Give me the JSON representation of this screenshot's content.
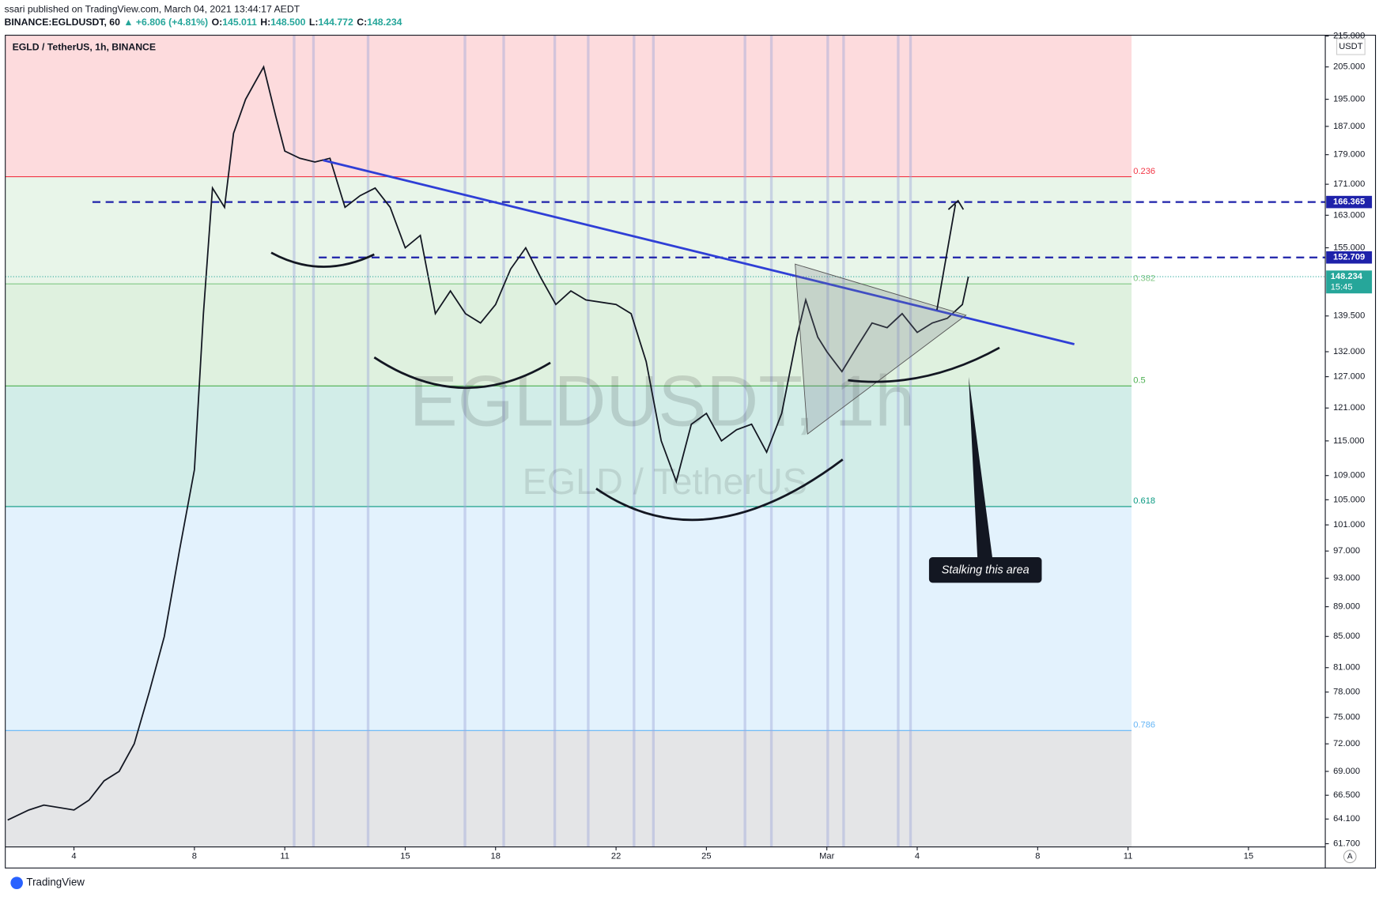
{
  "header": {
    "attribution": "ssari published on TradingView.com, March 04, 2021 13:44:17 AEDT",
    "symbol": "BINANCE:EGLDUSDT, 60",
    "change": "▲ +6.806 (+4.81%)",
    "ohlc": [
      {
        "key": "O:",
        "value": "145.011"
      },
      {
        "key": "H:",
        "value": "148.500"
      },
      {
        "key": "L:",
        "value": "144.772"
      },
      {
        "key": "C:",
        "value": "148.234"
      }
    ]
  },
  "footer": {
    "brand": "TradingView",
    "button": "A"
  },
  "chart_data": {
    "type": "line",
    "title": "EGLD / TetherUS, 1h, BINANCE",
    "watermark": "EGLDUSDT, 1h",
    "watermark_sub": "EGLD / TetherUS",
    "unit": "USDT",
    "log_scale": true,
    "grid": false,
    "color": "#131722",
    "x": [
      1.8,
      2.5,
      3,
      4,
      4.5,
      5,
      5.5,
      6,
      6.5,
      7,
      7.5,
      8,
      8.3,
      8.6,
      9,
      9.3,
      9.7,
      10,
      10.3,
      10.7,
      11,
      11.5,
      12,
      12.5,
      13,
      13.5,
      14,
      14.5,
      15,
      15.5,
      16,
      16.5,
      17,
      17.5,
      18,
      18.5,
      19,
      19.5,
      20,
      20.5,
      21,
      22,
      22.5,
      23,
      23.5,
      24,
      24.5,
      25,
      25.5,
      26,
      26.5,
      27,
      27.5,
      28,
      28.3,
      28.7,
      29,
      29.5,
      30,
      30.5,
      31,
      31.5,
      32,
      32.5,
      33,
      33.5,
      33.7
    ],
    "values": [
      64,
      65,
      65.5,
      65,
      66,
      68,
      69,
      72,
      78,
      85,
      97,
      110,
      140,
      170,
      165,
      185,
      195,
      200,
      205,
      190,
      180,
      178,
      177,
      178,
      165,
      168,
      170,
      165,
      155,
      158,
      140,
      145,
      140,
      138,
      142,
      150,
      155,
      148,
      142,
      145,
      143,
      142,
      140,
      130,
      115,
      108,
      118,
      120,
      115,
      117,
      118,
      113,
      120,
      135,
      143,
      135,
      132,
      128,
      133,
      138,
      137,
      140,
      136,
      138,
      139,
      142,
      148.234
    ],
    "xlim": [
      1.72,
      45.55
    ],
    "ylim": [
      61.4,
      215.3
    ],
    "xticks": [
      4,
      8,
      11,
      15,
      18,
      22,
      25,
      {
        "value": 29,
        "label": "Mar"
      },
      {
        "value": 32,
        "label": "4"
      },
      {
        "value": 36,
        "label": "8"
      },
      {
        "value": 39,
        "label": "11"
      },
      {
        "value": 43,
        "label": "15"
      }
    ],
    "yticks": [
      {
        "value": 215,
        "label": "215.000"
      },
      {
        "value": 205,
        "label": "205.000"
      },
      {
        "value": 195,
        "label": "195.000"
      },
      {
        "value": 187,
        "label": "187.000"
      },
      {
        "value": 179,
        "label": "179.000"
      },
      {
        "value": 171,
        "label": "171.000"
      },
      {
        "value": 163,
        "label": "163.000"
      },
      {
        "value": 155,
        "label": "155.000"
      },
      {
        "value": 139.5,
        "label": "139.500"
      },
      {
        "value": 132,
        "label": "132.000"
      },
      {
        "value": 127,
        "label": "127.000"
      },
      {
        "value": 121,
        "label": "121.000"
      },
      {
        "value": 115,
        "label": "115.000"
      },
      {
        "value": 109,
        "label": "109.000"
      },
      {
        "value": 105,
        "label": "105.000"
      },
      {
        "value": 101,
        "label": "101.000"
      },
      {
        "value": 97,
        "label": "97.000"
      },
      {
        "value": 93,
        "label": "93.000"
      },
      {
        "value": 89,
        "label": "89.000"
      },
      {
        "value": 85,
        "label": "85.000"
      },
      {
        "value": 81,
        "label": "81.000"
      },
      {
        "value": 78,
        "label": "78.000"
      },
      {
        "value": 75,
        "label": "75.000"
      },
      {
        "value": 72,
        "label": "72.000"
      },
      {
        "value": 69,
        "label": "69.000"
      },
      {
        "value": 66.5,
        "label": "66.500"
      },
      {
        "value": 64.1,
        "label": "64.100"
      },
      {
        "value": 61.7,
        "label": "61.700"
      }
    ],
    "fib_levels": [
      {
        "ratio": 0.236,
        "price": 173.0,
        "color": "#f23645"
      },
      {
        "ratio": 0.382,
        "price": 146.6,
        "color": "#81c784"
      },
      {
        "ratio": 0.5,
        "price": 125.2,
        "color": "#4caf50"
      },
      {
        "ratio": 0.618,
        "price": 103.9,
        "color": "#089981"
      },
      {
        "ratio": 0.786,
        "price": 73.5,
        "color": "#64b5f6"
      }
    ],
    "hlines": [
      166.365,
      152.709
    ],
    "hline_color": "#1e22aa",
    "last_price": 148.234,
    "countdown": "15:45",
    "last_color": "#26a69a",
    "annotation": "Stalking this area"
  }
}
